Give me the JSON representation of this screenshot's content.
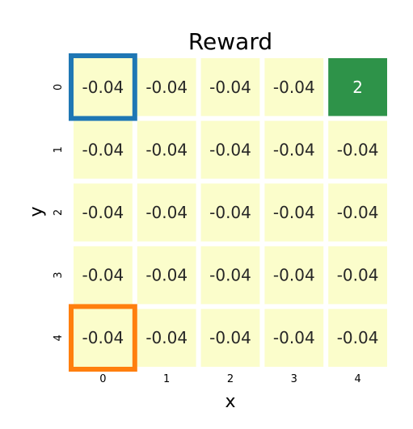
{
  "chart_data": {
    "type": "heatmap",
    "title": "Reward",
    "xlabel": "x",
    "ylabel": "y",
    "x_ticks": [
      "0",
      "1",
      "2",
      "3",
      "4"
    ],
    "y_ticks": [
      "0",
      "1",
      "2",
      "3",
      "4"
    ],
    "values": [
      [
        -0.04,
        -0.04,
        -0.04,
        -0.04,
        2
      ],
      [
        -0.04,
        -0.04,
        -0.04,
        -0.04,
        -0.04
      ],
      [
        -0.04,
        -0.04,
        -0.04,
        -0.04,
        -0.04
      ],
      [
        -0.04,
        -0.04,
        -0.04,
        -0.04,
        -0.04
      ],
      [
        -0.04,
        -0.04,
        -0.04,
        -0.04,
        -0.04
      ]
    ],
    "cell_labels": [
      [
        "-0.04",
        "-0.04",
        "-0.04",
        "-0.04",
        "2"
      ],
      [
        "-0.04",
        "-0.04",
        "-0.04",
        "-0.04",
        "-0.04"
      ],
      [
        "-0.04",
        "-0.04",
        "-0.04",
        "-0.04",
        "-0.04"
      ],
      [
        "-0.04",
        "-0.04",
        "-0.04",
        "-0.04",
        "-0.04"
      ],
      [
        "-0.04",
        "-0.04",
        "-0.04",
        "-0.04",
        "-0.04"
      ]
    ],
    "colormap": {
      "low": "#fbfdcb",
      "high": "#2e9349"
    },
    "highlights": [
      {
        "x": 0,
        "y": 0,
        "color": "#1f77b4"
      },
      {
        "x": 0,
        "y": 4,
        "color": "#ff7f0e"
      }
    ],
    "grid": false,
    "legend": "none"
  }
}
